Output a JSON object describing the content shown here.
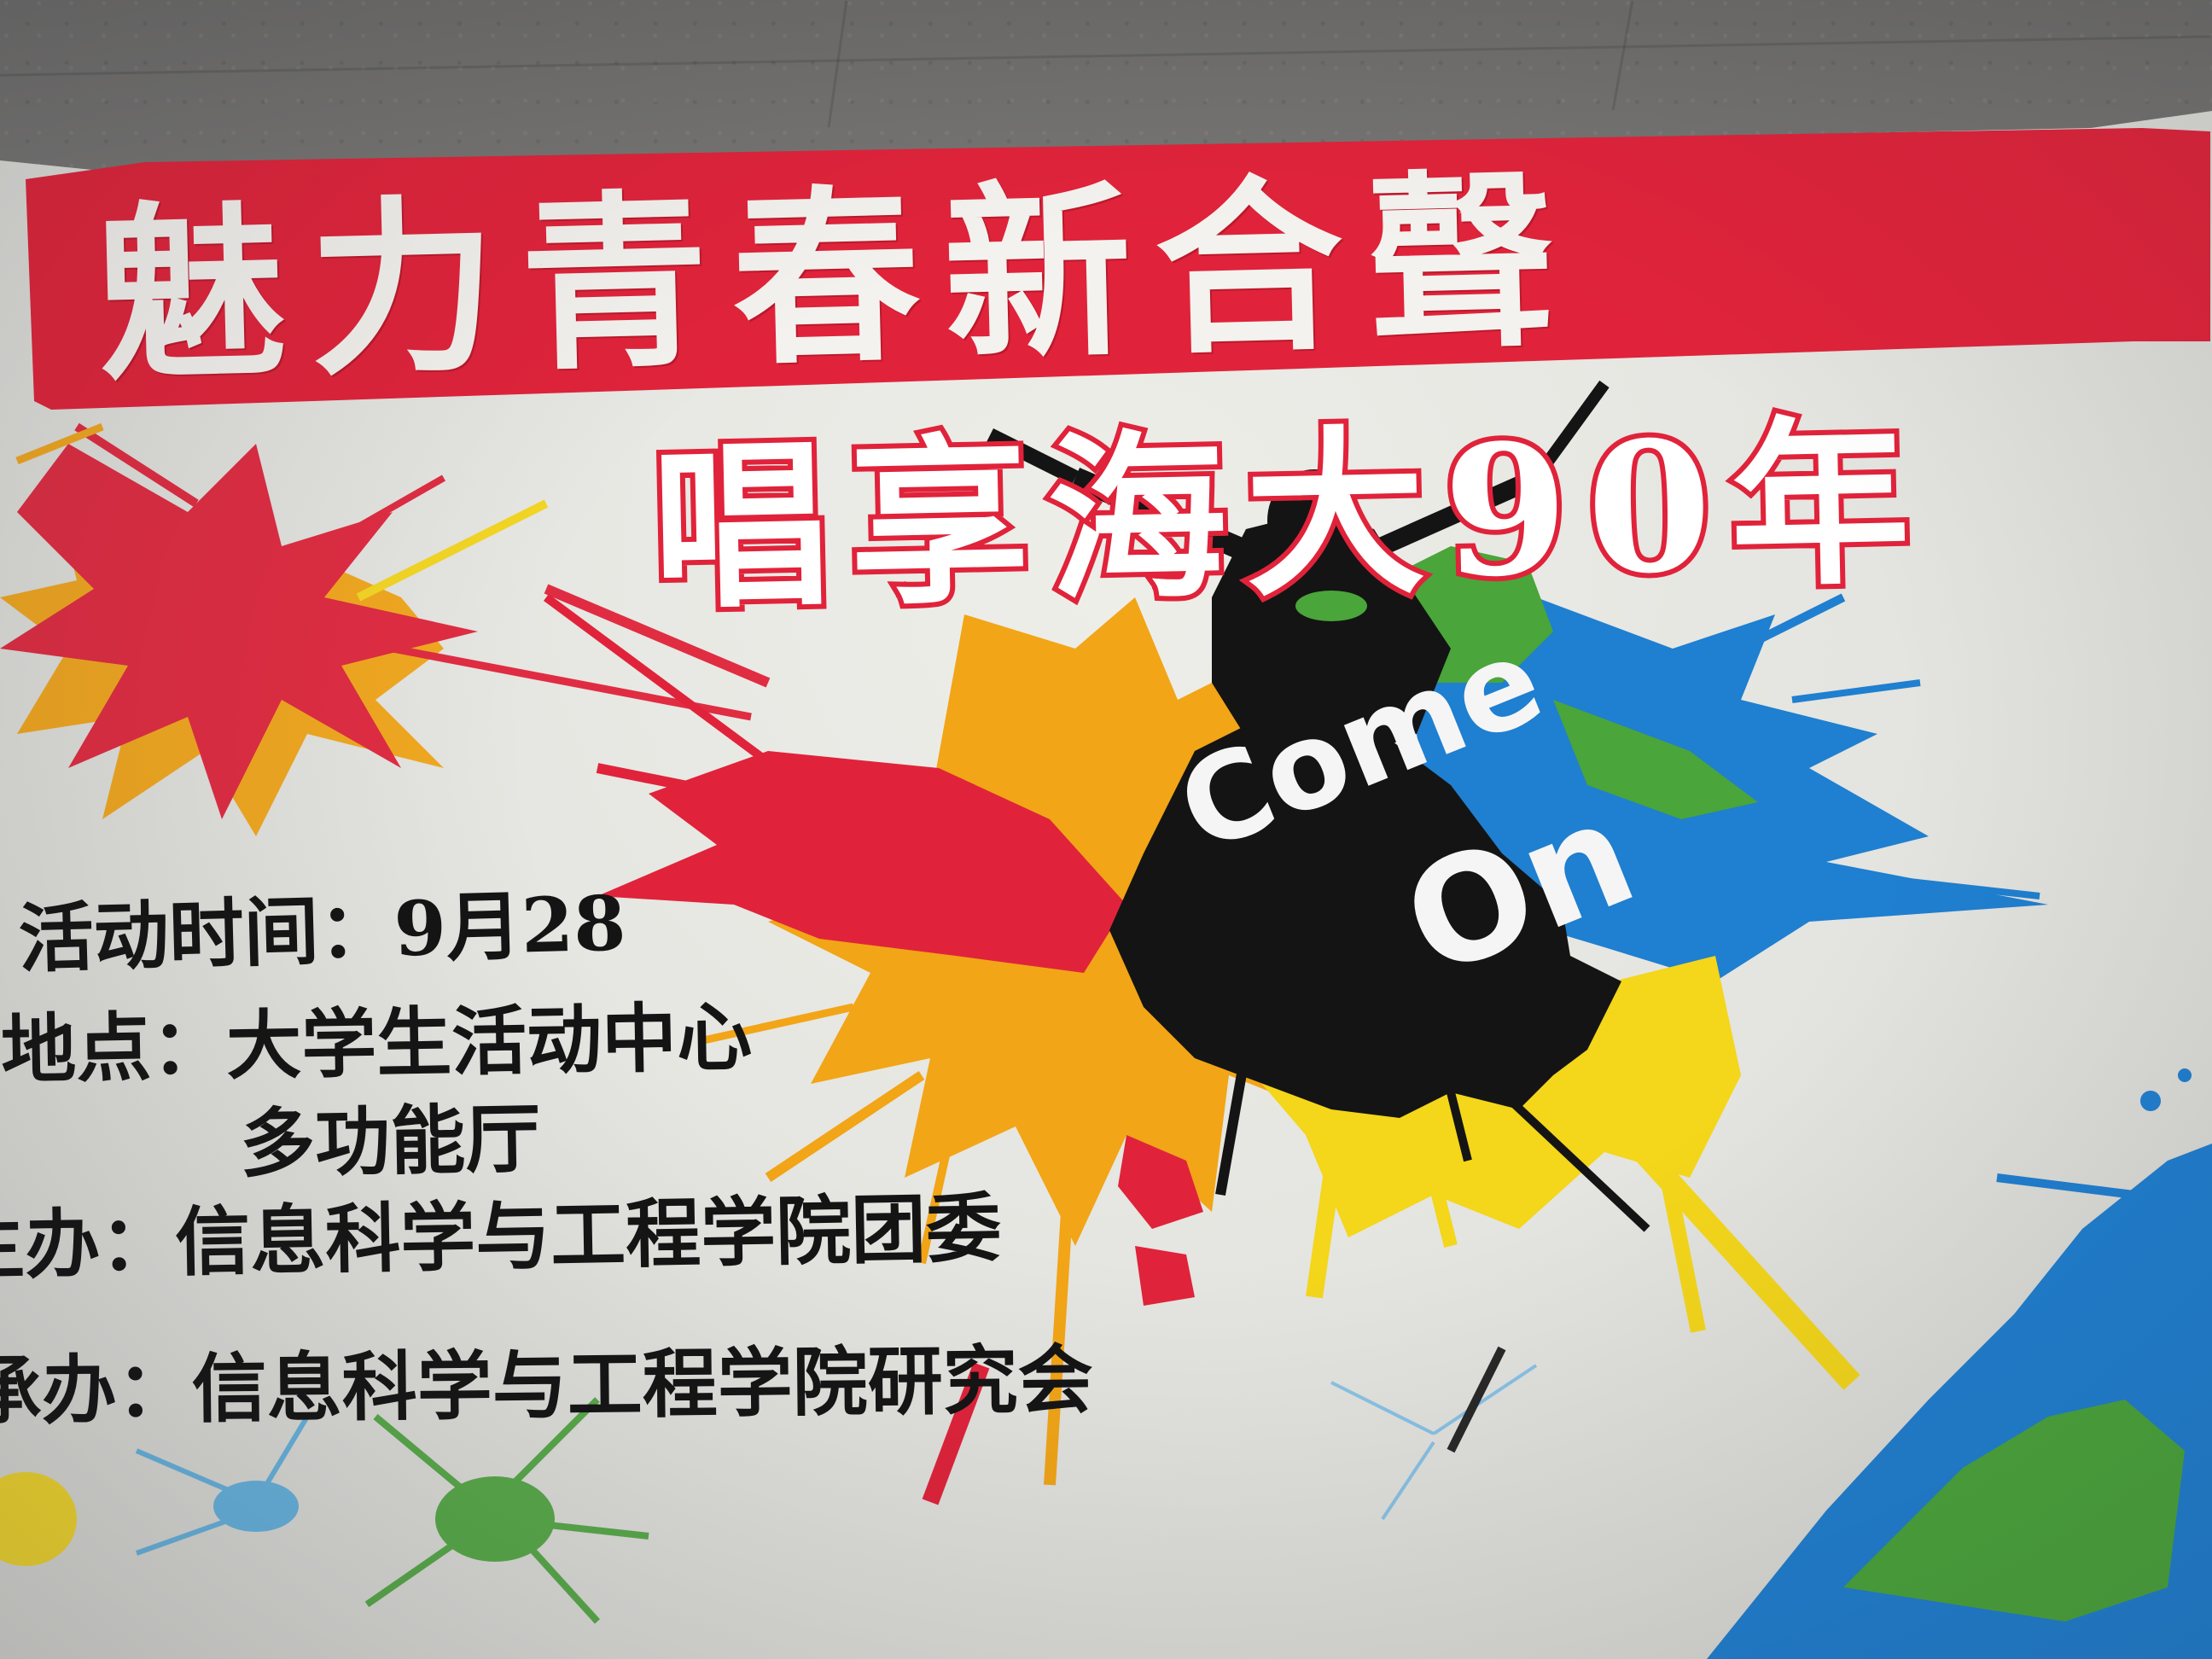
{
  "poster": {
    "banner_title": "魅力青春新合聲",
    "subtitle": "唱享海大90年",
    "center_text": {
      "line1": "Come",
      "line2": "On"
    },
    "info": {
      "time": "活动时间：9月28",
      "location": "地点：大学生活动中心",
      "location_cont": "多功能厅",
      "host": "主办：信息科学与工程学院团委",
      "organizer": "承办：信息科学与工程学院研究会"
    }
  },
  "colors": {
    "banner_red": "#e0233a",
    "splash_orange": "#f2a516",
    "splash_yellow": "#f4d61a",
    "splash_blue": "#1f7fd0",
    "splash_green": "#4aa53a",
    "ink_black": "#141414",
    "paper": "#e6e6e2"
  }
}
